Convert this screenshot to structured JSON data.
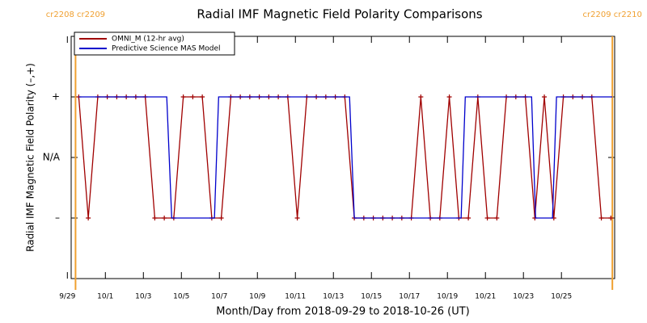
{
  "chart_data": {
    "type": "line",
    "title": "Radial IMF Magnetic Field Polarity Comparisons",
    "xlabel": "Month/Day from 2018-09-29 to 2018-10-26 (UT)",
    "ylabel": "Radial IMF Magnetic Field Polarity (–,+)",
    "xlim": [
      0.2,
      28.8
    ],
    "xticks": [
      {
        "value": 0,
        "label": "9/29"
      },
      {
        "value": 2,
        "label": "10/1"
      },
      {
        "value": 4,
        "label": "10/3"
      },
      {
        "value": 6,
        "label": "10/5"
      },
      {
        "value": 8,
        "label": "10/7"
      },
      {
        "value": 10,
        "label": "10/9"
      },
      {
        "value": 12,
        "label": "10/11"
      },
      {
        "value": 14,
        "label": "10/13"
      },
      {
        "value": 16,
        "label": "10/15"
      },
      {
        "value": 18,
        "label": "10/17"
      },
      {
        "value": 20,
        "label": "10/19"
      },
      {
        "value": 22,
        "label": "10/21"
      },
      {
        "value": 24,
        "label": "10/23"
      },
      {
        "value": 26,
        "label": "10/25"
      }
    ],
    "ylim": [
      -2,
      2
    ],
    "yticks": [
      {
        "value": 1,
        "label": "+"
      },
      {
        "value": 0,
        "label": "N/A"
      },
      {
        "value": -1,
        "label": "–"
      }
    ],
    "legend": "upper left",
    "series": [
      {
        "name": "OMNI_M (12-hr avg)",
        "color": "#a00000",
        "marker": "+",
        "x": [
          0.6,
          1.1,
          1.6,
          2.1,
          2.6,
          3.1,
          3.6,
          4.1,
          4.6,
          5.1,
          5.6,
          6.1,
          6.6,
          7.1,
          7.6,
          8.1,
          8.6,
          9.1,
          9.6,
          10.1,
          10.6,
          11.1,
          11.6,
          12.1,
          12.6,
          13.1,
          13.6,
          14.1,
          14.6,
          15.1,
          15.6,
          16.1,
          16.6,
          17.1,
          17.6,
          18.1,
          18.6,
          19.1,
          19.6,
          20.1,
          20.6,
          21.1,
          21.6,
          22.1,
          22.6,
          23.1,
          23.6,
          24.1,
          24.6,
          25.1,
          25.6,
          26.1,
          26.6,
          27.1,
          27.6,
          28.1,
          28.6
        ],
        "values": [
          1,
          -1,
          1,
          1,
          1,
          1,
          1,
          1,
          -1,
          -1,
          -1,
          1,
          1,
          1,
          -1,
          -1,
          1,
          1,
          1,
          1,
          1,
          1,
          1,
          -1,
          1,
          1,
          1,
          1,
          1,
          -1,
          -1,
          -1,
          -1,
          -1,
          -1,
          -1,
          1,
          -1,
          -1,
          1,
          -1,
          -1,
          1,
          -1,
          -1,
          1,
          1,
          1,
          -1,
          1,
          -1,
          1,
          1,
          1,
          1,
          -1,
          -1
        ]
      },
      {
        "name": "Predictive Science MAS Model",
        "color": "#0000cc",
        "x": [
          0.6,
          5.23,
          5.49,
          7.74,
          7.96,
          14.85,
          15.1,
          20.72,
          20.94,
          24.43,
          24.64,
          25.53,
          25.74,
          28.68
        ],
        "values": [
          1,
          1,
          -1,
          -1,
          1,
          1,
          -1,
          -1,
          1,
          1,
          -1,
          -1,
          1,
          1
        ]
      }
    ],
    "annotations": [
      {
        "x": 0.43,
        "text": "cr2208 cr2209",
        "color": "#f0a030"
      },
      {
        "x": 28.68,
        "text": "cr2209 cr2210",
        "color": "#f0a030"
      }
    ]
  }
}
